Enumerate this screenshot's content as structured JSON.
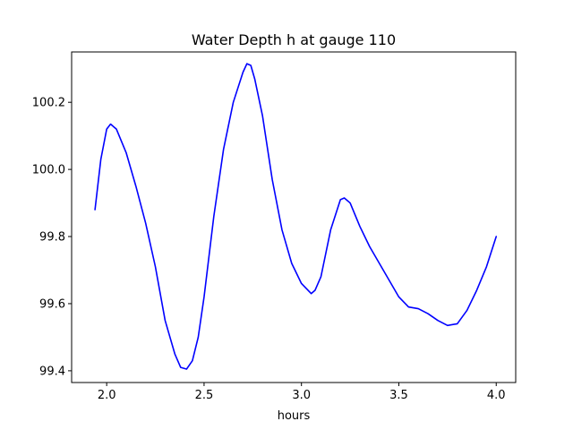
{
  "chart_data": {
    "type": "line",
    "title": "Water Depth h at gauge 110",
    "xlabel": "hours",
    "ylabel": "",
    "xlim": [
      1.82,
      4.1
    ],
    "ylim": [
      99.365,
      100.35
    ],
    "xticks": [
      2.0,
      2.5,
      3.0,
      3.5,
      4.0
    ],
    "xtick_labels": [
      "2.0",
      "2.5",
      "3.0",
      "3.5",
      "4.0"
    ],
    "yticks": [
      99.4,
      99.6,
      99.8,
      100.0,
      100.2
    ],
    "ytick_labels": [
      "99.4",
      "99.6",
      "99.8",
      "100.0",
      "100.2"
    ],
    "grid": false,
    "series": [
      {
        "color": "#0000ff",
        "x": [
          1.94,
          1.97,
          2.0,
          2.02,
          2.05,
          2.1,
          2.15,
          2.2,
          2.25,
          2.3,
          2.35,
          2.38,
          2.41,
          2.44,
          2.47,
          2.5,
          2.55,
          2.6,
          2.65,
          2.7,
          2.72,
          2.74,
          2.76,
          2.8,
          2.85,
          2.9,
          2.95,
          3.0,
          3.05,
          3.07,
          3.1,
          3.15,
          3.2,
          3.22,
          3.25,
          3.3,
          3.35,
          3.4,
          3.45,
          3.5,
          3.55,
          3.6,
          3.65,
          3.7,
          3.75,
          3.8,
          3.85,
          3.9,
          3.95,
          4.0
        ],
        "y": [
          99.88,
          100.03,
          100.12,
          100.135,
          100.12,
          100.05,
          99.95,
          99.84,
          99.71,
          99.55,
          99.45,
          99.41,
          99.405,
          99.43,
          99.5,
          99.62,
          99.86,
          100.06,
          100.2,
          100.29,
          100.315,
          100.31,
          100.27,
          100.16,
          99.97,
          99.82,
          99.72,
          99.66,
          99.63,
          99.64,
          99.68,
          99.82,
          99.91,
          99.915,
          99.9,
          99.83,
          99.77,
          99.72,
          99.67,
          99.62,
          99.59,
          99.585,
          99.57,
          99.55,
          99.535,
          99.54,
          99.58,
          99.64,
          99.71,
          99.8
        ]
      }
    ]
  }
}
